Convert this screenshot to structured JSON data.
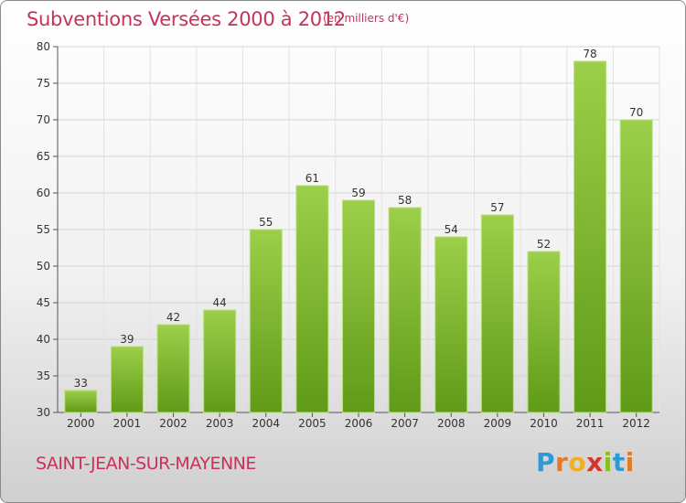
{
  "header": {
    "title": "Subventions Versées 2000 à 2012",
    "subtitle": "(en milliers d'€)"
  },
  "footer": {
    "commune": "SAINT-JEAN-SUR-MAYENNE",
    "logo": "Proxiti"
  },
  "colors": {
    "bar_top": "#9ccf4a",
    "bar_bottom": "#5f9a18",
    "text_accent": "#c8325a"
  },
  "chart_data": {
    "type": "bar",
    "title": "Subventions Versées 2000 à 2012",
    "subtitle": "(en milliers d'€)",
    "xlabel": "",
    "ylabel": "",
    "categories": [
      "2000",
      "2001",
      "2002",
      "2003",
      "2004",
      "2005",
      "2006",
      "2007",
      "2008",
      "2009",
      "2010",
      "2011",
      "2012"
    ],
    "values": [
      33,
      39,
      42,
      44,
      55,
      61,
      59,
      58,
      54,
      57,
      52,
      78,
      70
    ],
    "ylim": [
      30,
      80
    ],
    "yticks": [
      30,
      35,
      40,
      45,
      50,
      55,
      60,
      65,
      70,
      75,
      80
    ],
    "grid": true,
    "data_labels": true
  }
}
